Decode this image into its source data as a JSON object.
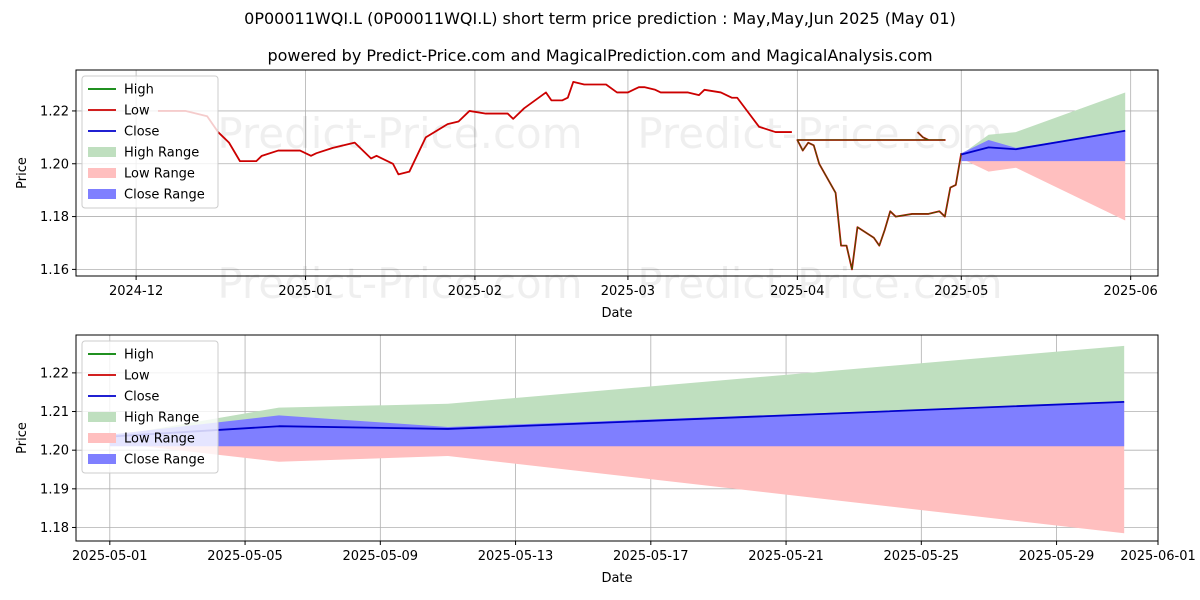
{
  "title": "0P00011WQI.L (0P00011WQI.L) short term price prediction : May,May,Jun 2025 (May 01)",
  "subtitle": "powered by Predict-Price.com and MagicalPrediction.com and MagicalAnalysis.com",
  "watermark": "Predict-Price.com",
  "colors": {
    "high": "#008000",
    "low": "#cc0000",
    "close": "#0000cc",
    "high_range": "#bfdfbf",
    "low_range": "#ffbfbf",
    "close_range": "#7f7fff"
  },
  "chart_data": [
    {
      "type": "line",
      "xlabel": "Date",
      "ylabel": "Price",
      "xlim": [
        "2024-11-20",
        "2025-06-06"
      ],
      "ylim": [
        1.1575,
        1.2355
      ],
      "grid": true,
      "legend_position": "top-left",
      "legend": [
        "High",
        "Low",
        "Close",
        "High Range",
        "Low Range",
        "Close Range"
      ],
      "x_ticks": [
        {
          "date": "2024-12-01",
          "label": "2024-12"
        },
        {
          "date": "2025-01-01",
          "label": "2025-01"
        },
        {
          "date": "2025-02-01",
          "label": "2025-02"
        },
        {
          "date": "2025-03-01",
          "label": "2025-03"
        },
        {
          "date": "2025-04-01",
          "label": "2025-04"
        },
        {
          "date": "2025-05-01",
          "label": "2025-05"
        },
        {
          "date": "2025-06-01",
          "label": "2025-06"
        }
      ],
      "y_ticks": [
        1.16,
        1.18,
        1.2,
        1.22
      ],
      "history": [
        [
          "2024-12-05",
          1.22
        ],
        [
          "2024-12-10",
          1.22
        ],
        [
          "2024-12-14",
          1.218
        ],
        [
          "2024-12-16",
          1.212
        ],
        [
          "2024-12-18",
          1.208
        ],
        [
          "2024-12-20",
          1.201
        ],
        [
          "2024-12-23",
          1.201
        ],
        [
          "2024-12-24",
          1.203
        ],
        [
          "2024-12-27",
          1.205
        ],
        [
          "2024-12-31",
          1.205
        ],
        [
          "2025-01-02",
          1.203
        ],
        [
          "2025-01-03",
          1.204
        ],
        [
          "2025-01-06",
          1.206
        ],
        [
          "2025-01-10",
          1.208
        ],
        [
          "2025-01-13",
          1.202
        ],
        [
          "2025-01-14",
          1.203
        ],
        [
          "2025-01-17",
          1.2
        ],
        [
          "2025-01-18",
          1.196
        ],
        [
          "2025-01-20",
          1.197
        ],
        [
          "2025-01-23",
          1.21
        ],
        [
          "2025-01-27",
          1.215
        ],
        [
          "2025-01-29",
          1.216
        ],
        [
          "2025-01-31",
          1.22
        ],
        [
          "2025-02-03",
          1.219
        ],
        [
          "2025-02-07",
          1.219
        ],
        [
          "2025-02-08",
          1.217
        ],
        [
          "2025-02-10",
          1.221
        ],
        [
          "2025-02-14",
          1.227
        ],
        [
          "2025-02-15",
          1.224
        ],
        [
          "2025-02-17",
          1.224
        ],
        [
          "2025-02-18",
          1.225
        ],
        [
          "2025-02-19",
          1.231
        ],
        [
          "2025-02-21",
          1.23
        ],
        [
          "2025-02-23",
          1.23
        ],
        [
          "2025-02-25",
          1.23
        ],
        [
          "2025-02-27",
          1.227
        ],
        [
          "2025-03-01",
          1.227
        ],
        [
          "2025-03-03",
          1.229
        ],
        [
          "2025-03-04",
          1.229
        ],
        [
          "2025-03-06",
          1.228
        ],
        [
          "2025-03-07",
          1.227
        ],
        [
          "2025-03-10",
          1.227
        ],
        [
          "2025-03-12",
          1.227
        ],
        [
          "2025-03-14",
          1.226
        ],
        [
          "2025-03-15",
          1.228
        ],
        [
          "2025-03-18",
          1.227
        ],
        [
          "2025-03-20",
          1.225
        ],
        [
          "2025-03-21",
          1.225
        ],
        [
          "2025-03-25",
          1.214
        ],
        [
          "2025-03-28",
          1.212
        ],
        [
          "2025-03-31",
          1.212
        ],
        [
          "2025-04-01",
          1.207
        ],
        [
          "2025-04-04",
          1.203
        ],
        [
          "2025-04-08",
          1.205
        ],
        [
          "2025-04-10",
          1.212
        ],
        [
          "2025-04-12",
          1.214
        ],
        [
          "2025-04-14",
          1.215
        ],
        [
          "2025-04-16",
          1.214
        ],
        [
          "2025-04-18",
          1.213
        ],
        [
          "2025-04-21",
          1.213
        ],
        [
          "2025-04-23",
          1.212
        ],
        [
          "2025-04-24",
          1.21
        ],
        [
          "2025-04-25",
          1.209
        ],
        [
          "2025-04-28",
          1.209
        ],
        [
          "2025-04-01",
          1.209
        ],
        [
          "2025-04-02",
          1.205
        ],
        [
          "2025-04-03",
          1.208
        ],
        [
          "2025-04-04",
          1.207
        ],
        [
          "2025-04-05",
          1.2
        ],
        [
          "2025-04-08",
          1.189
        ],
        [
          "2025-04-09",
          1.169
        ],
        [
          "2025-04-10",
          1.169
        ],
        [
          "2025-04-11",
          1.16
        ],
        [
          "2025-04-12",
          1.176
        ],
        [
          "2025-04-15",
          1.172
        ],
        [
          "2025-04-16",
          1.169
        ],
        [
          "2025-04-17",
          1.175
        ],
        [
          "2025-04-18",
          1.182
        ],
        [
          "2025-04-19",
          1.18
        ],
        [
          "2025-04-22",
          1.181
        ],
        [
          "2025-04-25",
          1.181
        ],
        [
          "2025-04-27",
          1.182
        ],
        [
          "2025-04-28",
          1.18
        ],
        [
          "2025-04-29",
          1.191
        ],
        [
          "2025-04-30",
          1.192
        ],
        [
          "2025-05-01",
          1.204
        ]
      ],
      "forecast": {
        "dates": [
          "2025-05-01",
          "2025-05-06",
          "2025-05-11",
          "2025-05-31"
        ],
        "high": [
          1.2035,
          1.211,
          1.212,
          1.227
        ],
        "low": [
          1.202,
          1.197,
          1.1985,
          1.1785
        ],
        "close": [
          1.2035,
          1.2062,
          1.2055,
          1.2125
        ],
        "close_range_top": [
          1.204,
          1.209,
          1.206,
          1.2125
        ],
        "close_range_bottom": [
          1.201,
          1.201,
          1.201,
          1.201
        ]
      }
    },
    {
      "type": "line",
      "xlabel": "Date",
      "ylabel": "Price",
      "xlim": [
        "2025-04-30",
        "2025-06-01"
      ],
      "ylim": [
        1.1765,
        1.2298
      ],
      "grid": true,
      "legend_position": "top-left",
      "legend": [
        "High",
        "Low",
        "Close",
        "High Range",
        "Low Range",
        "Close Range"
      ],
      "x_ticks": [
        {
          "date": "2025-05-01",
          "label": "2025-05-01"
        },
        {
          "date": "2025-05-05",
          "label": "2025-05-05"
        },
        {
          "date": "2025-05-09",
          "label": "2025-05-09"
        },
        {
          "date": "2025-05-13",
          "label": "2025-05-13"
        },
        {
          "date": "2025-05-17",
          "label": "2025-05-17"
        },
        {
          "date": "2025-05-21",
          "label": "2025-05-21"
        },
        {
          "date": "2025-05-25",
          "label": "2025-05-25"
        },
        {
          "date": "2025-05-29",
          "label": "2025-05-29"
        },
        {
          "date": "2025-06-01",
          "label": "2025-06-01"
        }
      ],
      "y_ticks": [
        1.18,
        1.19,
        1.2,
        1.21,
        1.22
      ],
      "forecast": {
        "dates": [
          "2025-05-01",
          "2025-05-06",
          "2025-05-11",
          "2025-05-31"
        ],
        "high": [
          1.2035,
          1.211,
          1.212,
          1.227
        ],
        "low": [
          1.202,
          1.197,
          1.1985,
          1.1785
        ],
        "close": [
          1.2035,
          1.2062,
          1.2055,
          1.2125
        ],
        "close_range_top": [
          1.204,
          1.209,
          1.206,
          1.2125
        ],
        "close_range_bottom": [
          1.201,
          1.201,
          1.201,
          1.201
        ]
      }
    }
  ]
}
